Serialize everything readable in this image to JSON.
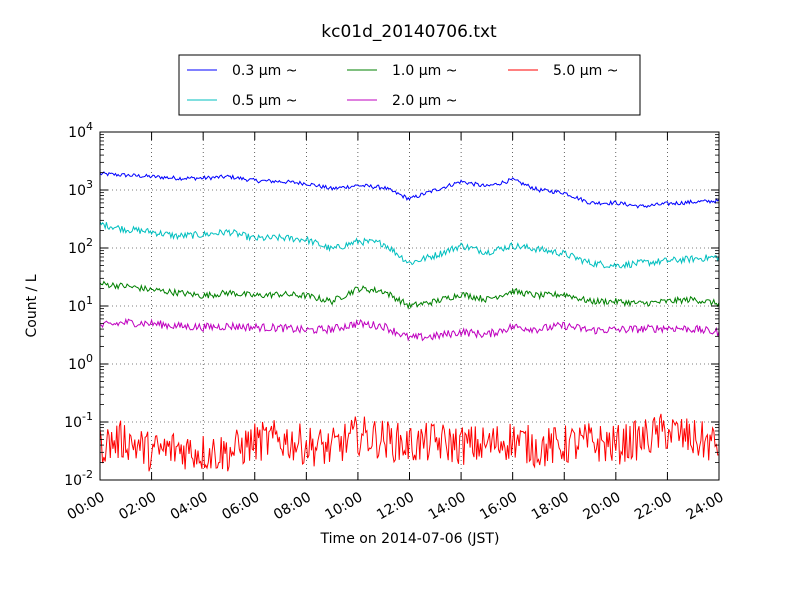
{
  "chart_data": {
    "type": "line",
    "title": "kc01d_20140706.txt",
    "xlabel": "Time on 2014-07-06 (JST)",
    "ylabel": "Count / L",
    "yscale": "log",
    "ylim": [
      0.01,
      10000
    ],
    "xlim": [
      "00:00",
      "24:00"
    ],
    "grid": true,
    "legend_position": "top",
    "x_tick_labels": [
      "00:00",
      "02:00",
      "04:00",
      "06:00",
      "08:00",
      "10:00",
      "12:00",
      "14:00",
      "16:00",
      "18:00",
      "20:00",
      "22:00",
      "24:00"
    ],
    "y_tick_labels": [
      {
        "base": "10",
        "exp": "-2"
      },
      {
        "base": "10",
        "exp": "-1"
      },
      {
        "base": "10",
        "exp": "0"
      },
      {
        "base": "10",
        "exp": "1"
      },
      {
        "base": "10",
        "exp": "2"
      },
      {
        "base": "10",
        "exp": "3"
      },
      {
        "base": "10",
        "exp": "4"
      }
    ],
    "x": [
      "00:00",
      "01:00",
      "02:00",
      "03:00",
      "04:00",
      "05:00",
      "06:00",
      "07:00",
      "08:00",
      "09:00",
      "10:00",
      "11:00",
      "12:00",
      "13:00",
      "14:00",
      "15:00",
      "16:00",
      "17:00",
      "18:00",
      "19:00",
      "20:00",
      "21:00",
      "22:00",
      "23:00",
      "24:00"
    ],
    "series": [
      {
        "name": "0.3 μm ~",
        "color": "#0000ff",
        "values": [
          1900,
          1800,
          1700,
          1600,
          1600,
          1700,
          1450,
          1400,
          1300,
          1050,
          1200,
          1100,
          700,
          1000,
          1400,
          1150,
          1500,
          1000,
          900,
          600,
          600,
          520,
          580,
          620,
          650
        ]
      },
      {
        "name": "0.5 μm ~",
        "color": "#00bfbf",
        "values": [
          260,
          210,
          190,
          160,
          170,
          190,
          145,
          150,
          140,
          95,
          130,
          120,
          55,
          75,
          110,
          85,
          110,
          95,
          80,
          55,
          50,
          55,
          60,
          65,
          70
        ]
      },
      {
        "name": "1.0 μm ~",
        "color": "#008000",
        "values": [
          24,
          22,
          19,
          17,
          15,
          17,
          15,
          16,
          15,
          12,
          20,
          18,
          10,
          12,
          16,
          13,
          18,
          15,
          16,
          12,
          12,
          11,
          12,
          13,
          11
        ]
      },
      {
        "name": "2.0 μm ~",
        "color": "#bf00bf",
        "values": [
          4.5,
          5.2,
          5.0,
          4.5,
          4.3,
          4.5,
          4.3,
          4.2,
          3.8,
          4.0,
          5.0,
          4.5,
          2.8,
          3.0,
          3.6,
          3.2,
          4.4,
          4.0,
          4.6,
          3.8,
          3.9,
          4.0,
          4.2,
          4.0,
          3.5
        ]
      },
      {
        "name": "5.0 μm ~",
        "color": "#ff0000",
        "values": [
          0.04,
          0.05,
          0.03,
          0.035,
          0.03,
          0.03,
          0.045,
          0.05,
          0.04,
          0.035,
          0.06,
          0.05,
          0.04,
          0.045,
          0.04,
          0.04,
          0.05,
          0.035,
          0.04,
          0.045,
          0.04,
          0.05,
          0.07,
          0.05,
          0.04
        ]
      }
    ]
  }
}
